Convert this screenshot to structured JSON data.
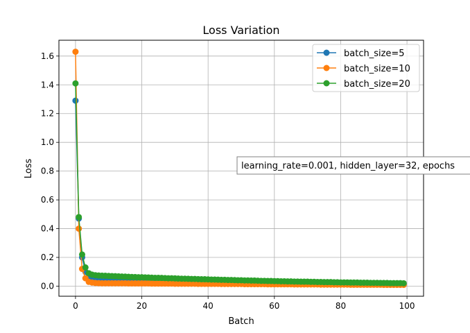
{
  "chart_data": {
    "type": "line",
    "title": "Loss Variation",
    "xlabel": "Batch",
    "ylabel": "Loss",
    "xlim": [
      -5,
      105
    ],
    "ylim": [
      -0.07,
      1.71
    ],
    "x_ticks": [
      0,
      20,
      40,
      60,
      80,
      100
    ],
    "x_tick_labels": [
      "0",
      "20",
      "40",
      "60",
      "80",
      "100"
    ],
    "y_ticks": [
      0.0,
      0.2,
      0.4,
      0.6,
      0.8,
      1.0,
      1.2,
      1.4,
      1.6
    ],
    "y_tick_labels": [
      "0.0",
      "0.2",
      "0.4",
      "0.6",
      "0.8",
      "1.0",
      "1.2",
      "1.4",
      "1.6"
    ],
    "grid": true,
    "legend_position": "top-right",
    "annotation": "learning_rate=0.001, hidden_layer=32, epochs",
    "series": [
      {
        "name": "batch_size=5",
        "color": "#1f77b4",
        "x": [
          0,
          1,
          2,
          3,
          4,
          5,
          6,
          7,
          8,
          9,
          10,
          11,
          12,
          13,
          14,
          15,
          16,
          17,
          18,
          19,
          20,
          21,
          22,
          23,
          24,
          25,
          26,
          27,
          28,
          29,
          30,
          31,
          32,
          33,
          34,
          35,
          36,
          37,
          38,
          39,
          40,
          41,
          42,
          43,
          44,
          45,
          46,
          47,
          48,
          49,
          50,
          51,
          52,
          53,
          54,
          55,
          56,
          57,
          58,
          59,
          60,
          61,
          62,
          63,
          64,
          65,
          66,
          67,
          68,
          69,
          70,
          71,
          72,
          73,
          74,
          75,
          76,
          77,
          78,
          79,
          80,
          81,
          82,
          83,
          84,
          85,
          86,
          87,
          88,
          89,
          90,
          91,
          92,
          93,
          94,
          95,
          96,
          97,
          98,
          99
        ],
        "y": [
          1.29,
          0.47,
          0.2,
          0.1,
          0.07,
          0.06,
          0.055,
          0.052,
          0.05,
          0.05,
          0.049,
          0.049,
          0.048,
          0.048,
          0.047,
          0.047,
          0.046,
          0.046,
          0.045,
          0.045,
          0.044,
          0.044,
          0.043,
          0.043,
          0.042,
          0.042,
          0.041,
          0.041,
          0.04,
          0.04,
          0.039,
          0.039,
          0.038,
          0.038,
          0.037,
          0.037,
          0.036,
          0.036,
          0.035,
          0.035,
          0.034,
          0.034,
          0.033,
          0.033,
          0.032,
          0.032,
          0.031,
          0.031,
          0.03,
          0.03,
          0.03,
          0.029,
          0.029,
          0.028,
          0.028,
          0.028,
          0.027,
          0.027,
          0.026,
          0.026,
          0.026,
          0.025,
          0.025,
          0.025,
          0.024,
          0.024,
          0.024,
          0.023,
          0.023,
          0.023,
          0.022,
          0.022,
          0.022,
          0.021,
          0.021,
          0.021,
          0.02,
          0.02,
          0.02,
          0.02,
          0.019,
          0.019,
          0.019,
          0.019,
          0.018,
          0.018,
          0.018,
          0.018,
          0.017,
          0.017,
          0.017,
          0.017,
          0.016,
          0.016,
          0.016,
          0.016,
          0.016,
          0.015,
          0.015,
          0.015
        ]
      },
      {
        "name": "batch_size=10",
        "color": "#ff7f0e",
        "x": [
          0,
          1,
          2,
          3,
          4,
          5,
          6,
          7,
          8,
          9,
          10,
          11,
          12,
          13,
          14,
          15,
          16,
          17,
          18,
          19,
          20,
          21,
          22,
          23,
          24,
          25,
          26,
          27,
          28,
          29,
          30,
          31,
          32,
          33,
          34,
          35,
          36,
          37,
          38,
          39,
          40,
          41,
          42,
          43,
          44,
          45,
          46,
          47,
          48,
          49,
          50,
          51,
          52,
          53,
          54,
          55,
          56,
          57,
          58,
          59,
          60,
          61,
          62,
          63,
          64,
          65,
          66,
          67,
          68,
          69,
          70,
          71,
          72,
          73,
          74,
          75,
          76,
          77,
          78,
          79,
          80,
          81,
          82,
          83,
          84,
          85,
          86,
          87,
          88,
          89,
          90,
          91,
          92,
          93,
          94,
          95,
          96,
          97,
          98,
          99
        ],
        "y": [
          1.63,
          0.4,
          0.12,
          0.055,
          0.03,
          0.025,
          0.022,
          0.021,
          0.02,
          0.02,
          0.02,
          0.02,
          0.02,
          0.02,
          0.02,
          0.02,
          0.019,
          0.019,
          0.019,
          0.019,
          0.019,
          0.019,
          0.019,
          0.018,
          0.018,
          0.018,
          0.018,
          0.018,
          0.018,
          0.018,
          0.017,
          0.017,
          0.017,
          0.017,
          0.017,
          0.017,
          0.017,
          0.016,
          0.016,
          0.016,
          0.016,
          0.016,
          0.016,
          0.016,
          0.015,
          0.015,
          0.015,
          0.015,
          0.015,
          0.015,
          0.015,
          0.014,
          0.014,
          0.014,
          0.014,
          0.014,
          0.014,
          0.014,
          0.013,
          0.013,
          0.013,
          0.013,
          0.013,
          0.013,
          0.013,
          0.013,
          0.012,
          0.012,
          0.012,
          0.012,
          0.012,
          0.012,
          0.012,
          0.012,
          0.011,
          0.011,
          0.011,
          0.011,
          0.011,
          0.011,
          0.011,
          0.011,
          0.011,
          0.01,
          0.01,
          0.01,
          0.01,
          0.01,
          0.01,
          0.01,
          0.01,
          0.01,
          0.01,
          0.009,
          0.009,
          0.009,
          0.009,
          0.009,
          0.009,
          0.009
        ]
      },
      {
        "name": "batch_size=20",
        "color": "#2ca02c",
        "x": [
          0,
          1,
          2,
          3,
          4,
          5,
          6,
          7,
          8,
          9,
          10,
          11,
          12,
          13,
          14,
          15,
          16,
          17,
          18,
          19,
          20,
          21,
          22,
          23,
          24,
          25,
          26,
          27,
          28,
          29,
          30,
          31,
          32,
          33,
          34,
          35,
          36,
          37,
          38,
          39,
          40,
          41,
          42,
          43,
          44,
          45,
          46,
          47,
          48,
          49,
          50,
          51,
          52,
          53,
          54,
          55,
          56,
          57,
          58,
          59,
          60,
          61,
          62,
          63,
          64,
          65,
          66,
          67,
          68,
          69,
          70,
          71,
          72,
          73,
          74,
          75,
          76,
          77,
          78,
          79,
          80,
          81,
          82,
          83,
          84,
          85,
          86,
          87,
          88,
          89,
          90,
          91,
          92,
          93,
          94,
          95,
          96,
          97,
          98,
          99
        ],
        "y": [
          1.41,
          0.48,
          0.22,
          0.13,
          0.09,
          0.08,
          0.076,
          0.074,
          0.073,
          0.072,
          0.071,
          0.07,
          0.069,
          0.068,
          0.067,
          0.066,
          0.065,
          0.064,
          0.063,
          0.062,
          0.062,
          0.061,
          0.06,
          0.059,
          0.058,
          0.058,
          0.057,
          0.056,
          0.055,
          0.055,
          0.054,
          0.053,
          0.052,
          0.052,
          0.051,
          0.05,
          0.05,
          0.049,
          0.048,
          0.048,
          0.047,
          0.046,
          0.046,
          0.045,
          0.044,
          0.044,
          0.043,
          0.043,
          0.042,
          0.041,
          0.041,
          0.04,
          0.04,
          0.039,
          0.039,
          0.038,
          0.037,
          0.037,
          0.036,
          0.036,
          0.035,
          0.035,
          0.034,
          0.034,
          0.033,
          0.033,
          0.032,
          0.032,
          0.031,
          0.031,
          0.031,
          0.03,
          0.03,
          0.029,
          0.029,
          0.028,
          0.028,
          0.028,
          0.027,
          0.027,
          0.026,
          0.026,
          0.026,
          0.025,
          0.025,
          0.025,
          0.024,
          0.024,
          0.024,
          0.023,
          0.023,
          0.023,
          0.022,
          0.022,
          0.022,
          0.021,
          0.021,
          0.021,
          0.021,
          0.02
        ]
      }
    ]
  }
}
